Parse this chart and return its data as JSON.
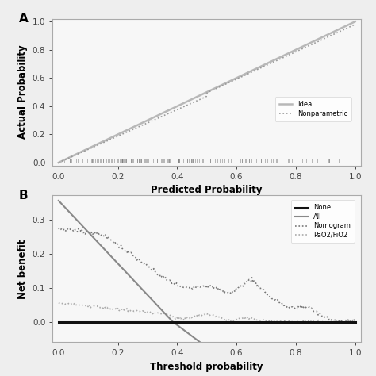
{
  "panel_a": {
    "xlabel": "Predicted Probability",
    "ylabel": "Actual Probability",
    "xlim": [
      -0.02,
      1.02
    ],
    "ylim": [
      -0.02,
      1.02
    ],
    "xticks": [
      0.0,
      0.2,
      0.4,
      0.6,
      0.8,
      1.0
    ],
    "yticks": [
      0.0,
      0.2,
      0.4,
      0.6,
      0.8,
      1.0
    ],
    "ideal_color": "#b8b8b8",
    "nonparametric_color": "#999999",
    "rug_color": "#777777"
  },
  "panel_b": {
    "xlabel": "Threshold probability",
    "ylabel": "Net benefit",
    "xlim": [
      -0.02,
      1.02
    ],
    "ylim": [
      -0.06,
      0.37
    ],
    "xticks": [
      0.0,
      0.2,
      0.4,
      0.6,
      0.8,
      1.0
    ],
    "yticks": [
      0.0,
      0.1,
      0.2,
      0.3
    ],
    "none_color": "#111111",
    "all_color": "#888888",
    "nomogram_color": "#777777",
    "pao2_color": "#aaaaaa"
  },
  "background_color": "#eeeeee",
  "panel_bg": "#f7f7f7"
}
